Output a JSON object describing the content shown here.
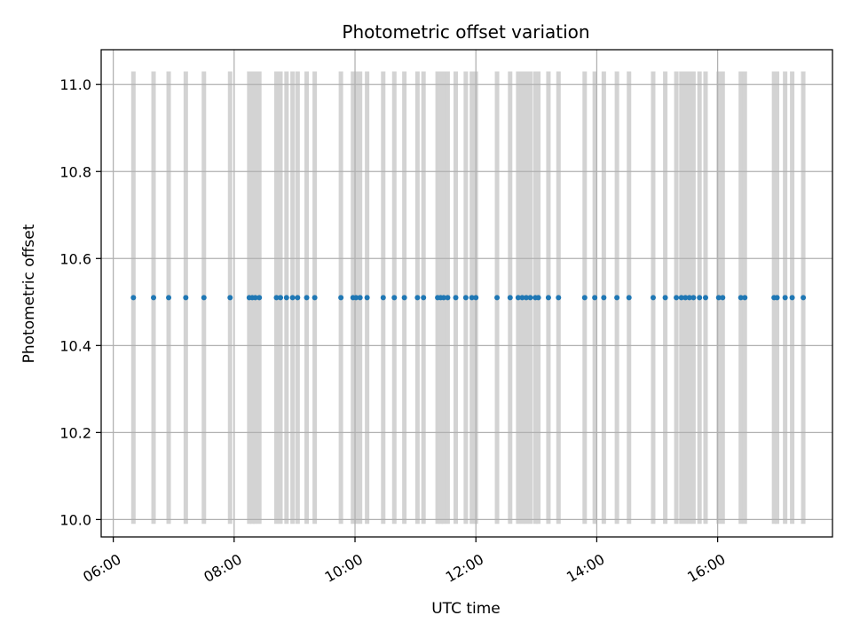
{
  "chart_data": {
    "type": "scatter",
    "title": "Photometric offset variation",
    "xlabel": "UTC time",
    "ylabel": "Photometric offset",
    "xlim": [
      "05:48",
      "17:54"
    ],
    "ylim": [
      9.96,
      11.08
    ],
    "x_ticks": [
      "06:00",
      "08:00",
      "10:00",
      "12:00",
      "14:00",
      "16:00"
    ],
    "y_ticks": [
      "10.0",
      "10.2",
      "10.4",
      "10.6",
      "10.8",
      "11.0"
    ],
    "grid": true,
    "series": [
      {
        "color": "#1f77b4",
        "marker": "dot",
        "x": [
          "06:20",
          "06:40",
          "06:55",
          "07:12",
          "07:30",
          "07:56",
          "08:15",
          "08:18",
          "08:21",
          "08:25",
          "08:42",
          "08:46",
          "08:52",
          "08:58",
          "09:03",
          "09:12",
          "09:20",
          "09:46",
          "09:58",
          "10:01",
          "10:05",
          "10:12",
          "10:28",
          "10:39",
          "10:49",
          "11:02",
          "11:08",
          "11:22",
          "11:25",
          "11:28",
          "11:32",
          "11:40",
          "11:50",
          "11:56",
          "12:00",
          "12:21",
          "12:34",
          "12:42",
          "12:46",
          "12:50",
          "12:54",
          "12:59",
          "13:02",
          "13:12",
          "13:22",
          "13:48",
          "13:58",
          "14:07",
          "14:20",
          "14:32",
          "14:56",
          "15:08",
          "15:19",
          "15:24",
          "15:28",
          "15:32",
          "15:36",
          "15:42",
          "15:48",
          "16:01",
          "16:05",
          "16:23",
          "16:27",
          "16:56",
          "16:59",
          "17:07",
          "17:14",
          "17:25"
        ],
        "y": [
          10.51,
          10.51,
          10.51,
          10.51,
          10.51,
          10.51,
          10.51,
          10.51,
          10.51,
          10.51,
          10.51,
          10.51,
          10.51,
          10.51,
          10.51,
          10.51,
          10.51,
          10.51,
          10.51,
          10.51,
          10.51,
          10.51,
          10.51,
          10.51,
          10.51,
          10.51,
          10.51,
          10.51,
          10.51,
          10.51,
          10.51,
          10.51,
          10.51,
          10.51,
          10.51,
          10.51,
          10.51,
          10.51,
          10.51,
          10.51,
          10.51,
          10.51,
          10.51,
          10.51,
          10.51,
          10.51,
          10.51,
          10.51,
          10.51,
          10.51,
          10.51,
          10.51,
          10.51,
          10.51,
          10.51,
          10.51,
          10.51,
          10.51,
          10.51,
          10.51,
          10.51,
          10.51,
          10.51,
          10.51,
          10.51,
          10.51,
          10.51,
          10.51
        ]
      }
    ],
    "vertical_bands": {
      "color": "#d3d3d3",
      "y_range": [
        9.99,
        11.03
      ]
    }
  }
}
